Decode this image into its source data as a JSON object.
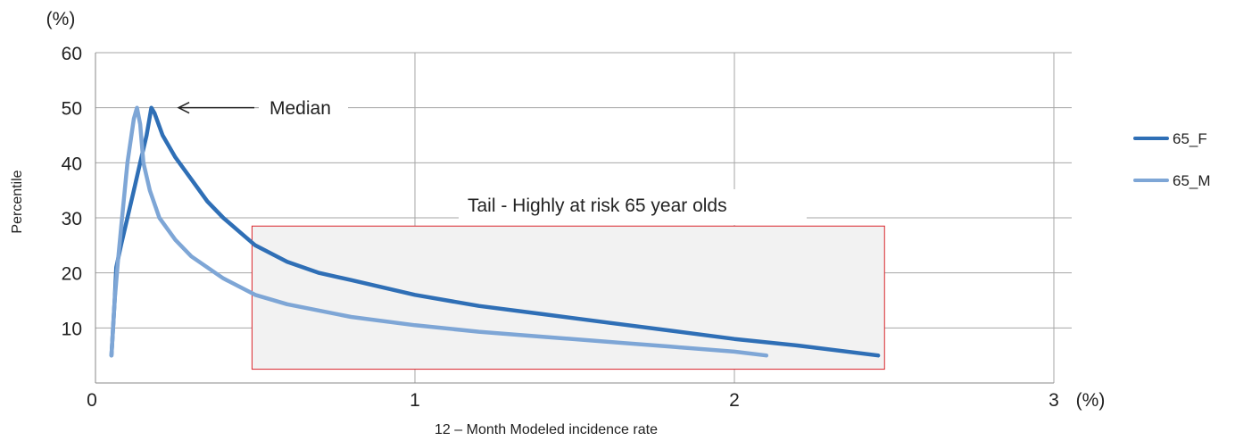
{
  "chart_data": {
    "type": "line",
    "xlabel": "12 – Month Modeled incidence rate",
    "ylabel": "Percentile",
    "x_unit": "(%)",
    "y_unit": "(%)",
    "xlim": [
      0,
      3
    ],
    "ylim": [
      0,
      60
    ],
    "x_ticks": [
      0,
      1,
      2,
      3
    ],
    "y_ticks": [
      10,
      20,
      30,
      40,
      50,
      60
    ],
    "grid": true,
    "legend_position": "right",
    "series": [
      {
        "name": "65_F",
        "color": "#2f6fb6",
        "points": [
          [
            0.05,
            5
          ],
          [
            0.06,
            15
          ],
          [
            0.065,
            21
          ],
          [
            0.08,
            25
          ],
          [
            0.1,
            30
          ],
          [
            0.12,
            35
          ],
          [
            0.14,
            40
          ],
          [
            0.16,
            45
          ],
          [
            0.175,
            50
          ],
          [
            0.185,
            49
          ],
          [
            0.21,
            45
          ],
          [
            0.25,
            41
          ],
          [
            0.3,
            37
          ],
          [
            0.35,
            33
          ],
          [
            0.4,
            30
          ],
          [
            0.45,
            27.5
          ],
          [
            0.5,
            25
          ],
          [
            0.6,
            22
          ],
          [
            0.7,
            20
          ],
          [
            0.8,
            18.7
          ],
          [
            1.0,
            16
          ],
          [
            1.2,
            14
          ],
          [
            1.4,
            12.5
          ],
          [
            1.6,
            11
          ],
          [
            1.8,
            9.5
          ],
          [
            2.0,
            8
          ],
          [
            2.2,
            6.8
          ],
          [
            2.45,
            5
          ]
        ]
      },
      {
        "name": "65_M",
        "color": "#7ea6d6",
        "points": [
          [
            0.05,
            5
          ],
          [
            0.06,
            15
          ],
          [
            0.07,
            22
          ],
          [
            0.08,
            28
          ],
          [
            0.1,
            40
          ],
          [
            0.12,
            48
          ],
          [
            0.13,
            50
          ],
          [
            0.14,
            47
          ],
          [
            0.15,
            40
          ],
          [
            0.17,
            35
          ],
          [
            0.2,
            30
          ],
          [
            0.25,
            26
          ],
          [
            0.3,
            23
          ],
          [
            0.4,
            19
          ],
          [
            0.5,
            16
          ],
          [
            0.6,
            14.3
          ],
          [
            0.8,
            12
          ],
          [
            1.0,
            10.5
          ],
          [
            1.2,
            9.3
          ],
          [
            1.4,
            8.4
          ],
          [
            1.6,
            7.5
          ],
          [
            1.8,
            6.6
          ],
          [
            2.0,
            5.7
          ],
          [
            2.1,
            5
          ]
        ]
      }
    ],
    "annotations": {
      "median_label": "Median",
      "tail_label": "Tail - Highly at risk 65 year olds",
      "median_arrow": {
        "from": [
          0.49,
          50
        ],
        "to": [
          0.26,
          50
        ]
      },
      "tail_box": {
        "x": [
          0.49,
          2.47
        ],
        "y": [
          2.5,
          28.5
        ]
      }
    }
  }
}
